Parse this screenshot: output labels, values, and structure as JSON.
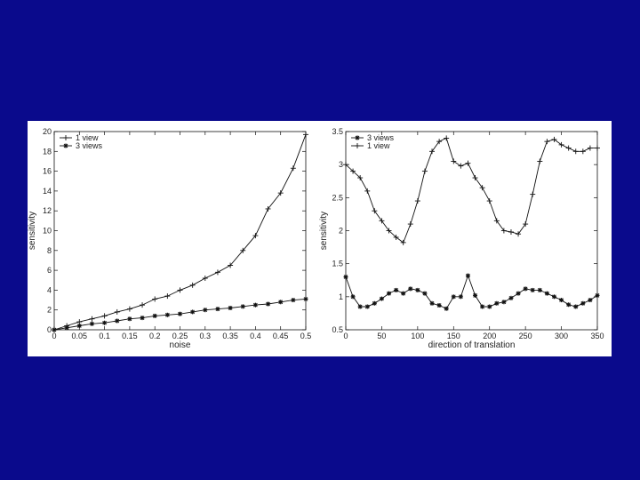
{
  "chart_data": [
    {
      "type": "line",
      "xlabel": "noise",
      "ylabel": "sensitivity",
      "xlim": [
        0,
        0.5
      ],
      "ylim": [
        0,
        20
      ],
      "x_ticks": [
        "0",
        "0.05",
        "0.1",
        "0.15",
        "0.2",
        "0.25",
        "0.3",
        "0.35",
        "0.4",
        "0.45",
        "0.5"
      ],
      "y_ticks": [
        "0",
        "2",
        "4",
        "6",
        "8",
        "10",
        "12",
        "14",
        "16",
        "18",
        "20"
      ],
      "legend_placement": "top-left",
      "grid": false,
      "series": [
        {
          "name": "1 view",
          "marker": "plus",
          "x": [
            0,
            0.025,
            0.05,
            0.075,
            0.1,
            0.125,
            0.15,
            0.175,
            0.2,
            0.225,
            0.25,
            0.275,
            0.3,
            0.325,
            0.35,
            0.375,
            0.4,
            0.425,
            0.45,
            0.475,
            0.5
          ],
          "y": [
            0,
            0.4,
            0.8,
            1.1,
            1.4,
            1.8,
            2.1,
            2.5,
            3.1,
            3.4,
            4.0,
            4.5,
            5.2,
            5.8,
            6.5,
            8.0,
            9.5,
            12.2,
            13.8,
            16.3,
            19.7
          ]
        },
        {
          "name": "3 views",
          "marker": "star",
          "x": [
            0,
            0.025,
            0.05,
            0.075,
            0.1,
            0.125,
            0.15,
            0.175,
            0.2,
            0.225,
            0.25,
            0.275,
            0.3,
            0.325,
            0.35,
            0.375,
            0.4,
            0.425,
            0.45,
            0.475,
            0.5
          ],
          "y": [
            0,
            0.2,
            0.4,
            0.6,
            0.7,
            0.9,
            1.1,
            1.2,
            1.4,
            1.5,
            1.6,
            1.8,
            2.0,
            2.1,
            2.2,
            2.35,
            2.5,
            2.6,
            2.8,
            3.0,
            3.1
          ]
        }
      ]
    },
    {
      "type": "line",
      "xlabel": "direction of translation",
      "ylabel": "sensitivity",
      "xlim": [
        0,
        350
      ],
      "ylim": [
        0.5,
        3.5
      ],
      "x_ticks": [
        "0",
        "50",
        "100",
        "150",
        "200",
        "250",
        "300",
        "350"
      ],
      "y_ticks": [
        "0.5",
        "1",
        "1.5",
        "2",
        "2.5",
        "3",
        "3.5"
      ],
      "legend_placement": "top-left",
      "grid": false,
      "series": [
        {
          "name": "3 views",
          "marker": "star",
          "x": [
            0,
            10,
            20,
            30,
            40,
            50,
            60,
            70,
            80,
            90,
            100,
            110,
            120,
            130,
            140,
            150,
            160,
            170,
            180,
            190,
            200,
            210,
            220,
            230,
            240,
            250,
            260,
            270,
            280,
            290,
            300,
            310,
            320,
            330,
            340,
            350
          ],
          "y": [
            1.3,
            1.0,
            0.85,
            0.85,
            0.9,
            0.97,
            1.05,
            1.1,
            1.05,
            1.12,
            1.1,
            1.05,
            0.9,
            0.87,
            0.82,
            1.0,
            1.0,
            1.32,
            1.02,
            0.85,
            0.85,
            0.9,
            0.92,
            0.98,
            1.05,
            1.12,
            1.1,
            1.1,
            1.05,
            1.0,
            0.95,
            0.88,
            0.85,
            0.9,
            0.95,
            1.02
          ]
        },
        {
          "name": "1 view",
          "marker": "plus",
          "x": [
            0,
            10,
            20,
            30,
            40,
            50,
            60,
            70,
            80,
            90,
            100,
            110,
            120,
            130,
            140,
            150,
            160,
            170,
            180,
            190,
            200,
            210,
            220,
            230,
            240,
            250,
            260,
            270,
            280,
            290,
            300,
            310,
            320,
            330,
            340,
            350
          ],
          "y": [
            3.0,
            2.9,
            2.8,
            2.6,
            2.3,
            2.15,
            2.0,
            1.9,
            1.82,
            2.1,
            2.45,
            2.9,
            3.2,
            3.35,
            3.4,
            3.05,
            2.98,
            3.02,
            2.8,
            2.65,
            2.45,
            2.15,
            2.0,
            1.98,
            1.95,
            2.1,
            2.55,
            3.05,
            3.35,
            3.38,
            3.3,
            3.25,
            3.2,
            3.2,
            3.25,
            3.25
          ]
        }
      ]
    }
  ]
}
